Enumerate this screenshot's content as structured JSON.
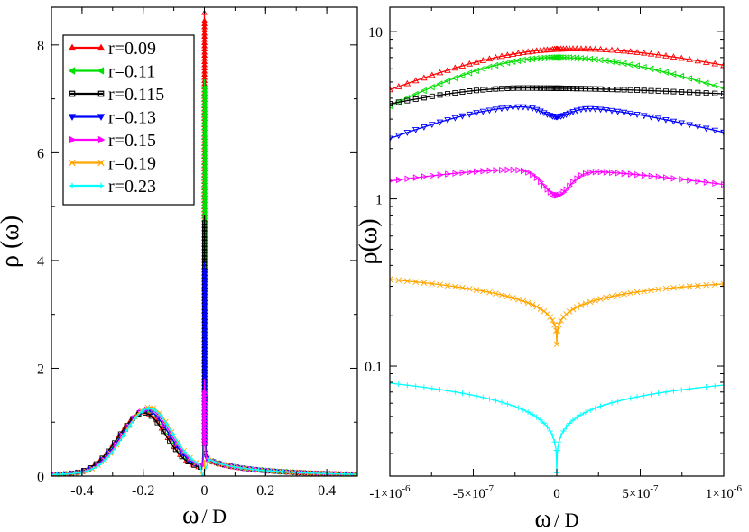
{
  "chart_data": [
    {
      "type": "line",
      "panel": "left",
      "title": "",
      "ylabel_main": "ρ (ω)",
      "xlabel_main": "ω",
      "xlabel_sub": "/ D",
      "xlim": [
        -0.5,
        0.5
      ],
      "ylim": [
        0,
        8.7
      ],
      "xticks": [
        -0.4,
        -0.2,
        0,
        0.2,
        0.4
      ],
      "xtick_labels": [
        "-0.4",
        "-0.2",
        "0",
        "0.2",
        "0.4"
      ],
      "yticks": [
        0,
        2,
        4,
        6,
        8
      ],
      "ytick_labels": [
        "0",
        "2",
        "4",
        "6",
        "8"
      ],
      "legend": "top-left",
      "series": [
        {
          "name": "r=0.09",
          "color": "#ff0000",
          "marker": "triangle-up",
          "peak": 8.45,
          "hump": 1.12,
          "hump_x": -0.2
        },
        {
          "name": "r=0.11",
          "color": "#00e000",
          "marker": "triangle-left",
          "peak": 7.2,
          "hump": 1.14,
          "hump_x": -0.19
        },
        {
          "name": "r=0.115",
          "color": "#000000",
          "marker": "square",
          "peak": 4.7,
          "hump": 1.1,
          "hump_x": -0.2
        },
        {
          "name": "r=0.13",
          "color": "#0000ff",
          "marker": "triangle-down",
          "peak": 3.8,
          "hump": 1.15,
          "hump_x": -0.19
        },
        {
          "name": "r=0.15",
          "color": "#ff00ff",
          "marker": "triangle-right",
          "peak": 1.55,
          "hump": 1.17,
          "hump_x": -0.185
        },
        {
          "name": "r=0.19",
          "color": "#ffa500",
          "marker": "x",
          "peak": 0.25,
          "hump": 1.21,
          "hump_x": -0.18
        },
        {
          "name": "r=0.23",
          "color": "#00ffff",
          "marker": "plus",
          "peak": 0.05,
          "hump": 1.18,
          "hump_x": -0.18
        }
      ]
    },
    {
      "type": "line",
      "panel": "right",
      "yscale": "log",
      "ylabel_main": "ρ(ω)",
      "xlabel_main": "ω",
      "xlabel_sub": "/ D",
      "xlim": [
        -1e-06,
        1e-06
      ],
      "ylim": [
        0.022,
        14
      ],
      "xticks": [
        -1e-06,
        -5e-07,
        0,
        5e-07,
        1e-06
      ],
      "xtick_labels": [
        {
          "base": "-1×10",
          "exp": "-6"
        },
        {
          "base": "-5×10",
          "exp": "-7"
        },
        {
          "base": "0",
          "exp": ""
        },
        {
          "base": "5×10",
          "exp": "-7"
        },
        {
          "base": "1×10",
          "exp": "-6"
        }
      ],
      "yticks": [
        0.1,
        1,
        10
      ],
      "ytick_labels": [
        "0.1",
        "1",
        "10"
      ],
      "series": [
        {
          "name": "r=0.09",
          "color": "#ff0000",
          "marker": "triangle-up",
          "left": 4.5,
          "mid": 7.9,
          "mid_x": 1e-07,
          "right": 6.3,
          "dip": 0
        },
        {
          "name": "r=0.11",
          "color": "#00e000",
          "marker": "triangle-left",
          "left": 3.6,
          "mid": 7.0,
          "mid_x": 0,
          "right": 4.6,
          "dip": 0
        },
        {
          "name": "r=0.115",
          "color": "#000000",
          "marker": "square",
          "left": 3.7,
          "mid": 4.6,
          "mid_x": -2e-07,
          "right": 4.25,
          "dip": 0
        },
        {
          "name": "r=0.13",
          "color": "#0000ff",
          "marker": "triangle-down",
          "left": 2.3,
          "mid": 3.6,
          "mid_x": -1e-07,
          "right": 2.5,
          "dip": 3.1
        },
        {
          "name": "r=0.15",
          "color": "#ff00ff",
          "marker": "triangle-right",
          "left": 1.28,
          "mid": 1.5,
          "mid_x": -1.5e-07,
          "right": 1.22,
          "dip": 1.05
        },
        {
          "name": "r=0.19",
          "color": "#ffa500",
          "marker": "x",
          "left": 0.33,
          "mid": 0.33,
          "mid_x": -8e-07,
          "right": 0.31,
          "dip": 0.135
        },
        {
          "name": "r=0.23",
          "color": "#00ffff",
          "marker": "plus",
          "left": 0.079,
          "mid": 0.079,
          "mid_x": -9e-07,
          "right": 0.077,
          "dip": 0.023
        }
      ]
    }
  ]
}
